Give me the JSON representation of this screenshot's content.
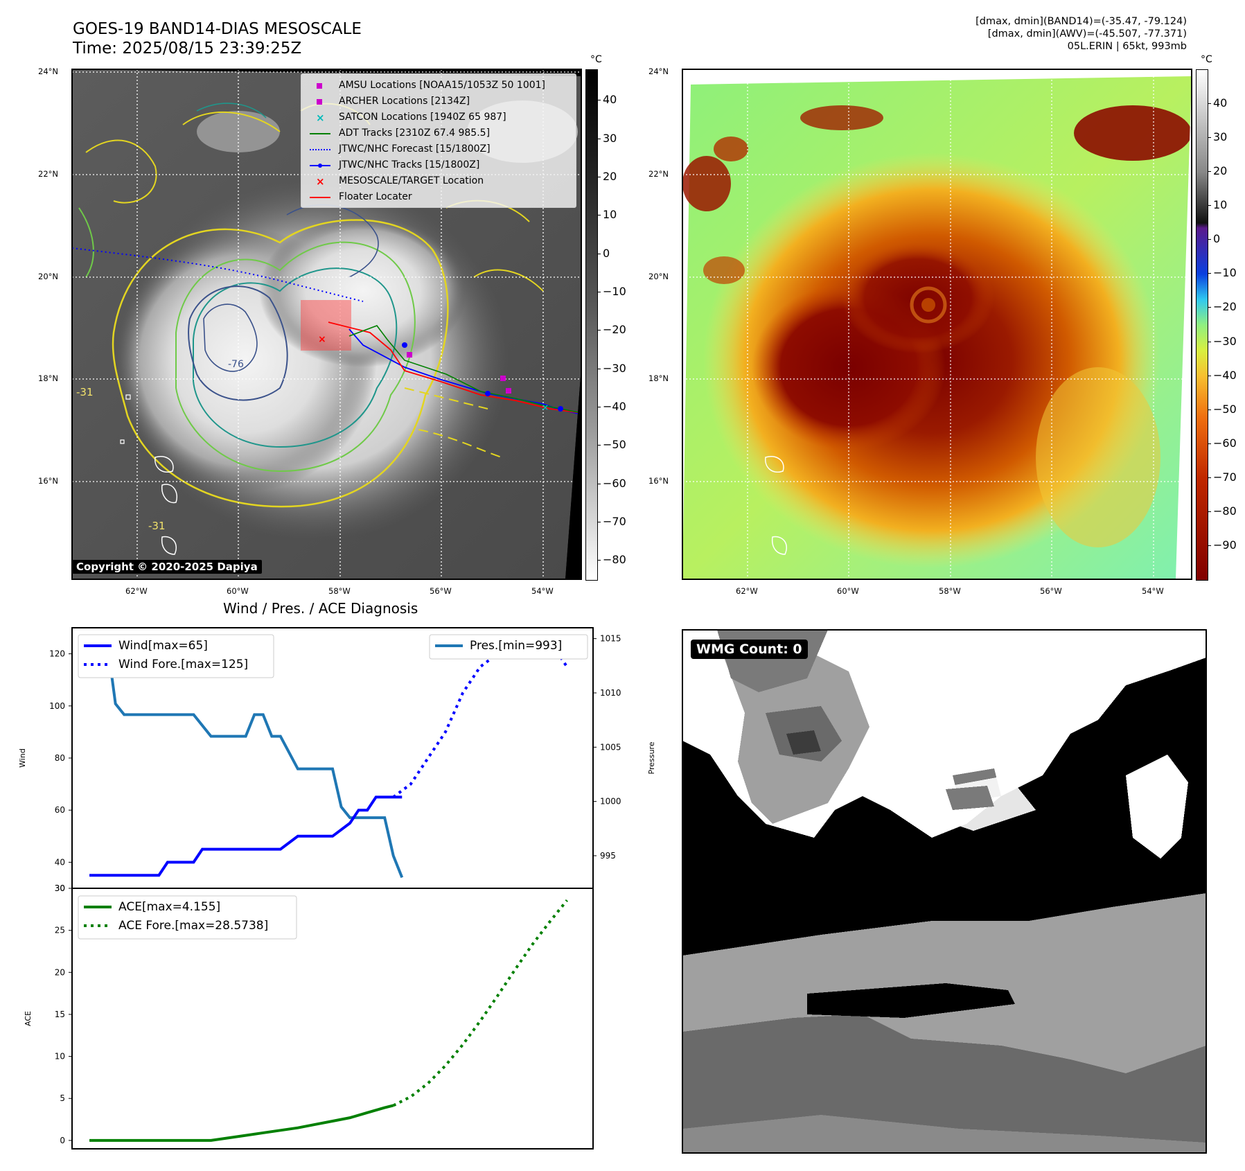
{
  "header": {
    "title_line1": "GOES-19 BAND14-DIAS MESOSCALE",
    "title_line2": "Time: 2025/08/15 23:39:25Z",
    "right_line1": "[dmax, dmin](BAND14)=(-35.47, -79.124)",
    "right_line2": "[dmax, dmin](AWV)=(-45.507, -77.371)",
    "right_line3": "05L.ERIN | 65kt, 993mb"
  },
  "map_axes": {
    "lat_labels": [
      "24°N",
      "22°N",
      "20°N",
      "18°N",
      "16°N"
    ],
    "lon_labels": [
      "62°W",
      "60°W",
      "58°W",
      "56°W",
      "54°W"
    ]
  },
  "left_map": {
    "copyright": "Copyright © 2020-2025 Dapiya",
    "contour_label_1": "-31",
    "contour_label_2": "-31",
    "contour_label_3": "-76",
    "legend": [
      {
        "label": "AMSU Locations [NOAA15/1053Z 50 1001]",
        "color": "#cc00cc",
        "marker": "square"
      },
      {
        "label": "ARCHER Locations [2134Z]",
        "color": "#cc00cc",
        "marker": "square"
      },
      {
        "label": "SATCON Locations [1940Z 65 987]",
        "color": "#00bbbb",
        "marker": "x"
      },
      {
        "label": "ADT Tracks [2310Z 67.4 985.5]",
        "color": "#008000",
        "marker": "line"
      },
      {
        "label": "JTWC/NHC Forecast [15/1800Z]",
        "color": "#0000ff",
        "marker": "dotted"
      },
      {
        "label": "JTWC/NHC Tracks [15/1800Z]",
        "color": "#0000ff",
        "marker": "line-dot"
      },
      {
        "label": "MESOSCALE/TARGET Location",
        "color": "#ff0000",
        "marker": "x"
      },
      {
        "label": "Floater Locater",
        "color": "#ff0000",
        "marker": "line"
      }
    ],
    "colorbar": {
      "unit": "°C",
      "ticks": [
        "40",
        "30",
        "20",
        "10",
        "0",
        "−10",
        "−20",
        "−30",
        "−40",
        "−50",
        "−60",
        "−70",
        "−80"
      ]
    }
  },
  "right_map": {
    "colorbar": {
      "unit": "°C",
      "ticks": [
        "40",
        "30",
        "20",
        "10",
        "0",
        "−10",
        "−20",
        "−30",
        "−40",
        "−50",
        "−60",
        "−70",
        "−80",
        "−90"
      ]
    }
  },
  "wmg": {
    "label": "WMG Count: 0"
  },
  "chart_data": [
    {
      "type": "line",
      "title": "Wind / Pres. / ACE Diagnosis",
      "ylabel": "Wind",
      "ylim": [
        30,
        130
      ],
      "yticks": [
        "120",
        "100",
        "80",
        "60",
        "40",
        "30"
      ],
      "secondary_ylabel": "Pressure",
      "secondary_ylim": [
        992,
        1016
      ],
      "secondary_yticks": [
        "1015",
        "1010",
        "1005",
        "1000",
        "995"
      ],
      "x_index": [
        0,
        1,
        2,
        3,
        4,
        5,
        6,
        7,
        8,
        9,
        10,
        11,
        12,
        13,
        14,
        15,
        16,
        17,
        18,
        19,
        20,
        21,
        22,
        23,
        24,
        25,
        26,
        27,
        28,
        29,
        30,
        31,
        32,
        33,
        34,
        35,
        36,
        37,
        38,
        39,
        40,
        41,
        42,
        43,
        44,
        45,
        46,
        47,
        48,
        49,
        50,
        51,
        52,
        53,
        54,
        55,
        56,
        57,
        58,
        59,
        60
      ],
      "xlim": [
        -2,
        58
      ],
      "series": [
        {
          "name": "Wind[max=65]",
          "axis": "left",
          "style": "solid",
          "color": "#0000ff",
          "x": [
            0,
            2,
            4,
            6,
            8,
            9,
            10,
            11,
            12,
            13,
            14,
            16,
            18,
            20,
            22,
            24,
            25,
            26,
            28,
            30,
            31,
            32,
            33,
            34,
            35,
            36
          ],
          "y": [
            35,
            35,
            35,
            35,
            35,
            40,
            40,
            40,
            40,
            45,
            45,
            45,
            45,
            45,
            45,
            50,
            50,
            50,
            50,
            55,
            60,
            60,
            65,
            65,
            65,
            65
          ]
        },
        {
          "name": "Wind Fore.[max=125]",
          "axis": "left",
          "style": "dotted",
          "color": "#0000ff",
          "x": [
            35,
            37,
            39,
            41,
            43,
            45,
            47,
            49,
            51,
            53,
            55
          ],
          "y": [
            65,
            70,
            80,
            90,
            105,
            115,
            120,
            125,
            125,
            125,
            115
          ]
        },
        {
          "name": "Pres.[min=993]",
          "axis": "right",
          "style": "solid",
          "color": "#1f77b4",
          "x": [
            0,
            1,
            2,
            3,
            4,
            6,
            8,
            10,
            12,
            14,
            16,
            18,
            19,
            20,
            21,
            22,
            24,
            26,
            28,
            29,
            30,
            32,
            34,
            35,
            36
          ],
          "y": [
            1015,
            1015,
            1015,
            1009,
            1008,
            1008,
            1008,
            1008,
            1008,
            1006,
            1006,
            1006,
            1008,
            1008,
            1006,
            1006,
            1003,
            1003,
            1003,
            999.5,
            998.5,
            998.5,
            998.5,
            995,
            993
          ]
        }
      ]
    },
    {
      "type": "line",
      "ylabel": "ACE",
      "ylim": [
        -1,
        30
      ],
      "yticks": [
        "30",
        "25",
        "20",
        "15",
        "10",
        "5",
        "0"
      ],
      "xlim": [
        -2,
        58
      ],
      "series": [
        {
          "name": "ACE[max=4.155]",
          "style": "solid",
          "color": "#008000",
          "x": [
            0,
            2,
            4,
            6,
            8,
            10,
            12,
            14,
            16,
            18,
            20,
            22,
            24,
            26,
            28,
            30,
            32,
            34,
            35
          ],
          "y": [
            0,
            0,
            0,
            0,
            0,
            0,
            0,
            0,
            0.3,
            0.6,
            0.9,
            1.2,
            1.5,
            1.9,
            2.3,
            2.7,
            3.3,
            3.9,
            4.155
          ]
        },
        {
          "name": "ACE Fore.[max=28.5738]",
          "style": "dotted",
          "color": "#008000",
          "x": [
            35,
            37,
            39,
            41,
            43,
            45,
            47,
            49,
            51,
            53,
            55
          ],
          "y": [
            4.155,
            5.2,
            6.8,
            8.9,
            11.4,
            14.2,
            17.2,
            20.3,
            23.3,
            26.0,
            28.5738
          ]
        }
      ]
    }
  ]
}
